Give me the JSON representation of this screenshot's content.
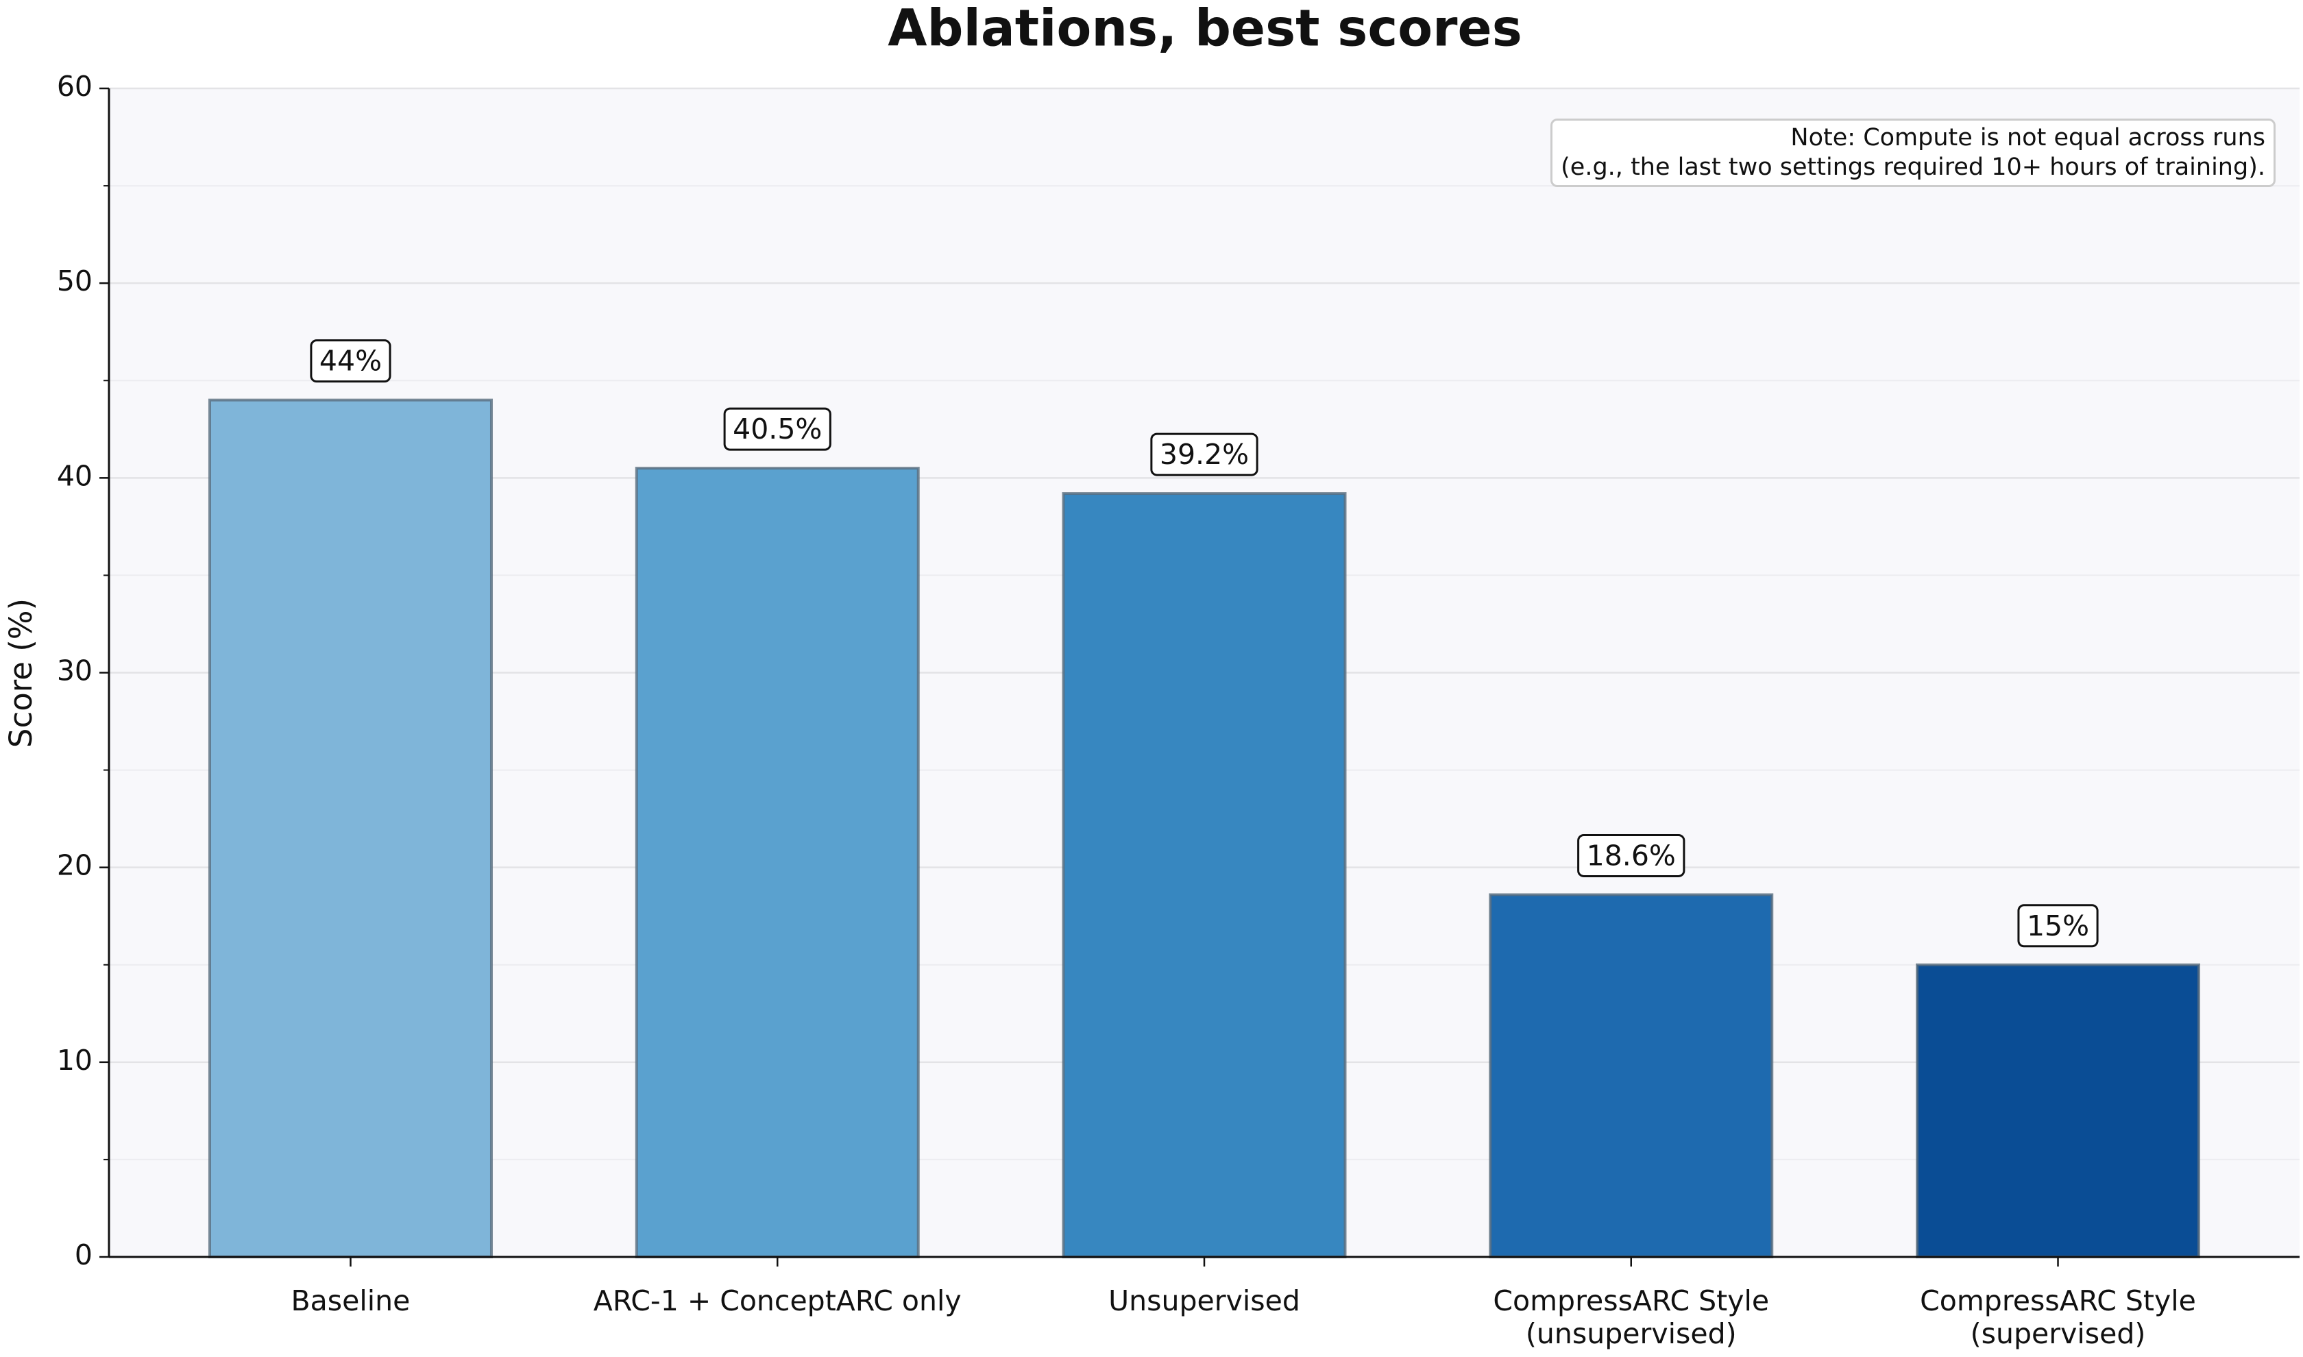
{
  "chart_data": {
    "type": "bar",
    "title": "Ablations, best scores",
    "y_label": "Score (%)",
    "categories": [
      "Baseline",
      "ARC-1 + ConceptARC only",
      "Unsupervised",
      "CompressARC Style\n(unsupervised)",
      "CompressARC Style\n(supervised)"
    ],
    "values": [
      44,
      40.5,
      39.2,
      18.6,
      15
    ],
    "value_labels": [
      "44%",
      "40.5%",
      "39.2%",
      "18.6%",
      "15%"
    ],
    "colors": [
      "#7fb5d9",
      "#5aa1cf",
      "#3787c0",
      "#1e6aaf",
      "#0a4d95"
    ],
    "ylim": [
      0,
      60
    ],
    "yticks": [
      0,
      10,
      20,
      30,
      40,
      50,
      60
    ],
    "yminorticks": [
      5,
      15,
      25,
      35,
      45,
      55
    ],
    "grid": true,
    "annotation": "Note: Compute is not equal across runs\n(e.g., the last two settings required 10+ hours of training).",
    "annotation_position": "upper right"
  }
}
